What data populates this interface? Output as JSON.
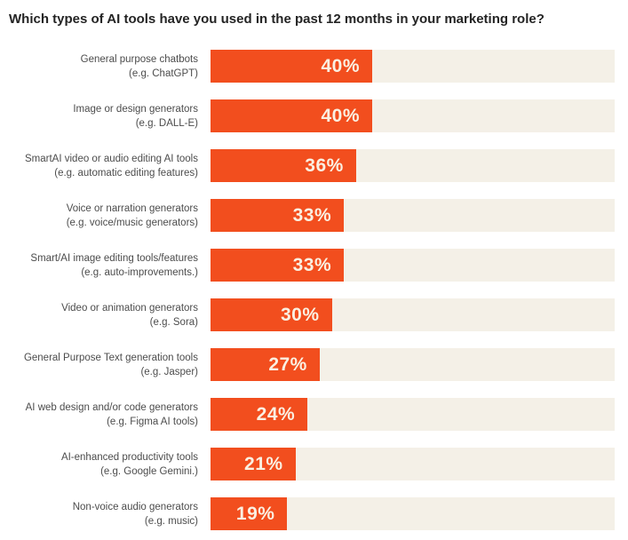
{
  "title": "Which types of AI tools have you used in the past 12 months in your marketing role?",
  "colors": {
    "bar": "#f24e1e",
    "track": "#f4f0e7",
    "title_text": "#242424",
    "label_text": "#4c4c4c",
    "value_text": "#faf0e2",
    "background": "#ffffff"
  },
  "chart_data": {
    "type": "bar",
    "orientation": "horizontal",
    "title": "Which types of AI tools have you used in the past 12 months in your marketing role?",
    "value_unit": "%",
    "xlim": [
      0,
      100
    ],
    "grid": false,
    "legend": "none",
    "value_label_position": "inside-right",
    "rows": [
      {
        "label": "General purpose chatbots",
        "sublabel": "(e.g. ChatGPT)",
        "value": 40,
        "value_display": "40%"
      },
      {
        "label": "Image or design generators",
        "sublabel": "(e.g. DALL-E)",
        "value": 40,
        "value_display": "40%"
      },
      {
        "label": "SmartAI video or audio editing AI tools",
        "sublabel": "(e.g. automatic editing features)",
        "value": 36,
        "value_display": "36%"
      },
      {
        "label": "Voice or narration generators",
        "sublabel": "(e.g. voice/music generators)",
        "value": 33,
        "value_display": "33%"
      },
      {
        "label": "Smart/AI image editing tools/features",
        "sublabel": "(e.g. auto-improvements.)",
        "value": 33,
        "value_display": "33%"
      },
      {
        "label": "Video or animation generators",
        "sublabel": "(e.g. Sora)",
        "value": 30,
        "value_display": "30%"
      },
      {
        "label": "General Purpose Text generation tools",
        "sublabel": "(e.g. Jasper)",
        "value": 27,
        "value_display": "27%"
      },
      {
        "label": "AI web design and/or code generators",
        "sublabel": "(e.g. Figma AI tools)",
        "value": 24,
        "value_display": "24%"
      },
      {
        "label": "AI-enhanced productivity tools",
        "sublabel": "(e.g. Google Gemini.)",
        "value": 21,
        "value_display": "21%"
      },
      {
        "label": "Non-voice audio generators",
        "sublabel": "(e.g. music)",
        "value": 19,
        "value_display": "19%"
      }
    ]
  }
}
